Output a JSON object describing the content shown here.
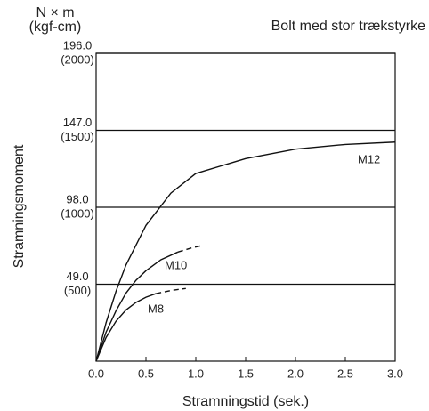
{
  "chart_data": {
    "type": "line",
    "title": "Bolt med stor trækstyrke",
    "y_unit": "N × m",
    "y_unit2": "(kgf-cm)",
    "x_label": "Stramningstid (sek.)",
    "y_label": "Stramningsmoment",
    "xlim": [
      0,
      3
    ],
    "ylim": [
      0,
      196
    ],
    "xticks": [
      {
        "value": 0,
        "label": "0.0"
      },
      {
        "value": 0.5,
        "label": "0.5"
      },
      {
        "value": 1,
        "label": "1.0"
      },
      {
        "value": 1.5,
        "label": "1.5"
      },
      {
        "value": 2,
        "label": "2.0"
      },
      {
        "value": 2.5,
        "label": "2.5"
      },
      {
        "value": 3,
        "label": "3.0"
      }
    ],
    "yticks": [
      {
        "value": 49,
        "label": "49.0"
      },
      {
        "value": 98,
        "label": "98.0"
      },
      {
        "value": 147,
        "label": "147.0"
      },
      {
        "value": 196,
        "label": "196.0"
      }
    ],
    "yticks_kgf": [
      "(500)",
      "(1000)",
      "(1500)",
      "(2000)"
    ],
    "grid": true,
    "color": "#111111",
    "series": [
      {
        "name": "M12",
        "x": [
          0,
          0.1,
          0.2,
          0.3,
          0.5,
          0.75,
          1,
          1.5,
          2,
          2.5,
          3
        ],
        "values": [
          0,
          24.5,
          44.6,
          61.3,
          86.5,
          107,
          119.5,
          129,
          135,
          138,
          139.5
        ]
      },
      {
        "name": "M10",
        "x": [
          0,
          0.1,
          0.2,
          0.3,
          0.4,
          0.5,
          0.65,
          0.82
        ],
        "values": [
          0,
          18.5,
          32.1,
          43.4,
          51.5,
          57.6,
          64.6,
          69.5
        ],
        "dashed_x": [
          0.82,
          0.95,
          1.05
        ],
        "dashed_values": [
          69.5,
          72,
          73.5
        ]
      },
      {
        "name": "M8",
        "x": [
          0,
          0.1,
          0.2,
          0.3,
          0.4,
          0.5,
          0.6
        ],
        "values": [
          0,
          15.1,
          25.5,
          32.6,
          37.4,
          40.7,
          43
        ],
        "dashed_x": [
          0.6,
          0.75,
          0.9
        ],
        "dashed_values": [
          43,
          45,
          46.3
        ]
      }
    ]
  }
}
